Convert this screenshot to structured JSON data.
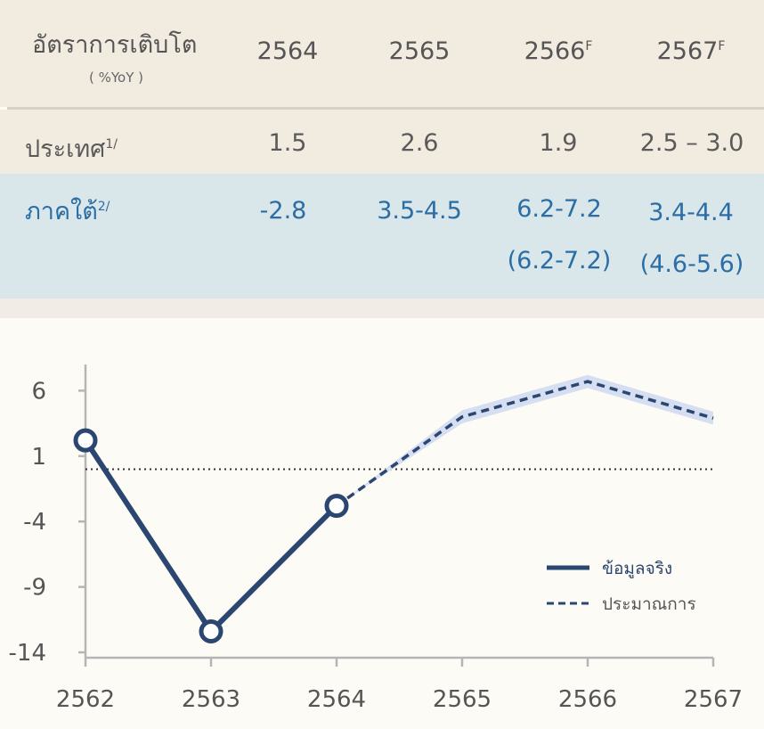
{
  "table": {
    "title": "อัตราการเติบโต",
    "unit": "( %YoY )",
    "years": [
      {
        "year": "2564",
        "sup": ""
      },
      {
        "year": "2565",
        "sup": ""
      },
      {
        "year": "2566",
        "sup": "F"
      },
      {
        "year": "2567",
        "sup": "F"
      }
    ],
    "country": {
      "label": "ประเทศ",
      "sup": "1/",
      "values": [
        "1.5",
        "2.6",
        "1.9",
        "2.5 – 3.0"
      ]
    },
    "south": {
      "label": "ภาคใต้",
      "sup": "2/",
      "values": [
        "-2.8",
        "3.5-4.5",
        "6.2-7.2",
        "3.4-4.4"
      ],
      "secondary": [
        "",
        "",
        "(6.2-7.2)",
        "(4.6-5.6)"
      ]
    }
  },
  "chart_data": {
    "type": "line",
    "x": [
      "2562",
      "2563",
      "2564",
      "2565",
      "2566",
      "2567"
    ],
    "yticks": [
      6,
      1,
      -4,
      -9,
      -14
    ],
    "ylim": [
      -14,
      8
    ],
    "reference_line": 0,
    "series": [
      {
        "name": "ข้อมูลจริง",
        "style": "solid",
        "x": [
          "2562",
          "2563",
          "2564"
        ],
        "values": [
          2.2,
          -12.4,
          -2.8
        ]
      },
      {
        "name": "ประมาณการ",
        "style": "dashed",
        "x": [
          "2564",
          "2565",
          "2566",
          "2567"
        ],
        "values": [
          -2.8,
          4.0,
          6.7,
          3.9
        ],
        "band_low": [
          -2.8,
          3.5,
          6.2,
          3.4
        ],
        "band_high": [
          -2.8,
          4.5,
          7.2,
          4.4
        ]
      }
    ],
    "legend_position": "bottom-right",
    "colors": {
      "line": "#2b4670",
      "band": "#d5dff1",
      "axis": "#b5b5b5",
      "reference": "#333333"
    }
  }
}
